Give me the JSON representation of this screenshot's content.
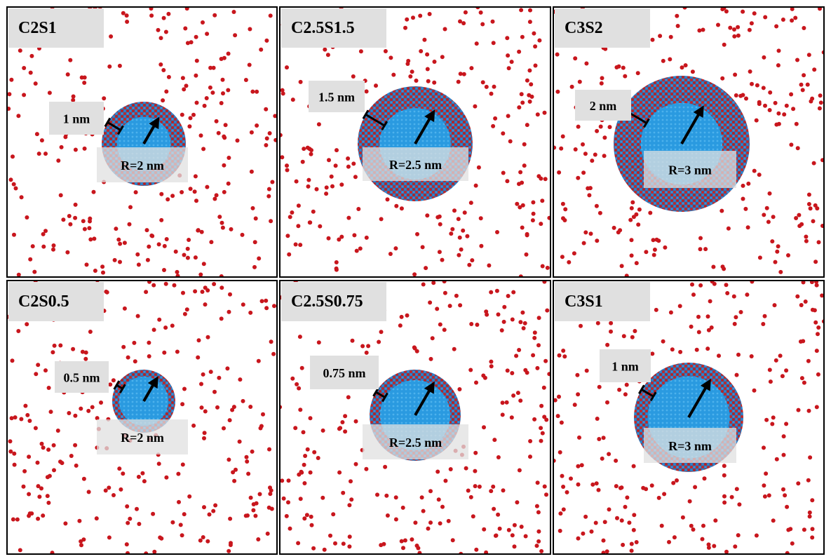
{
  "panels": [
    {
      "name": "C2S1",
      "shell_label": "1 nm",
      "radius_label": "R=2 nm"
    },
    {
      "name": "C2.5S1.5",
      "shell_label": "1.5 nm",
      "radius_label": "R=2.5 nm"
    },
    {
      "name": "C3S2",
      "shell_label": "2 nm",
      "radius_label": "R=3 nm"
    },
    {
      "name": "C2S0.5",
      "shell_label": "0.5 nm",
      "radius_label": "R=2 nm"
    },
    {
      "name": "C2.5S0.75",
      "shell_label": "0.75 nm",
      "radius_label": "R=2.5 nm"
    },
    {
      "name": "C3S1",
      "shell_label": "1 nm",
      "radius_label": "R=3 nm"
    }
  ]
}
